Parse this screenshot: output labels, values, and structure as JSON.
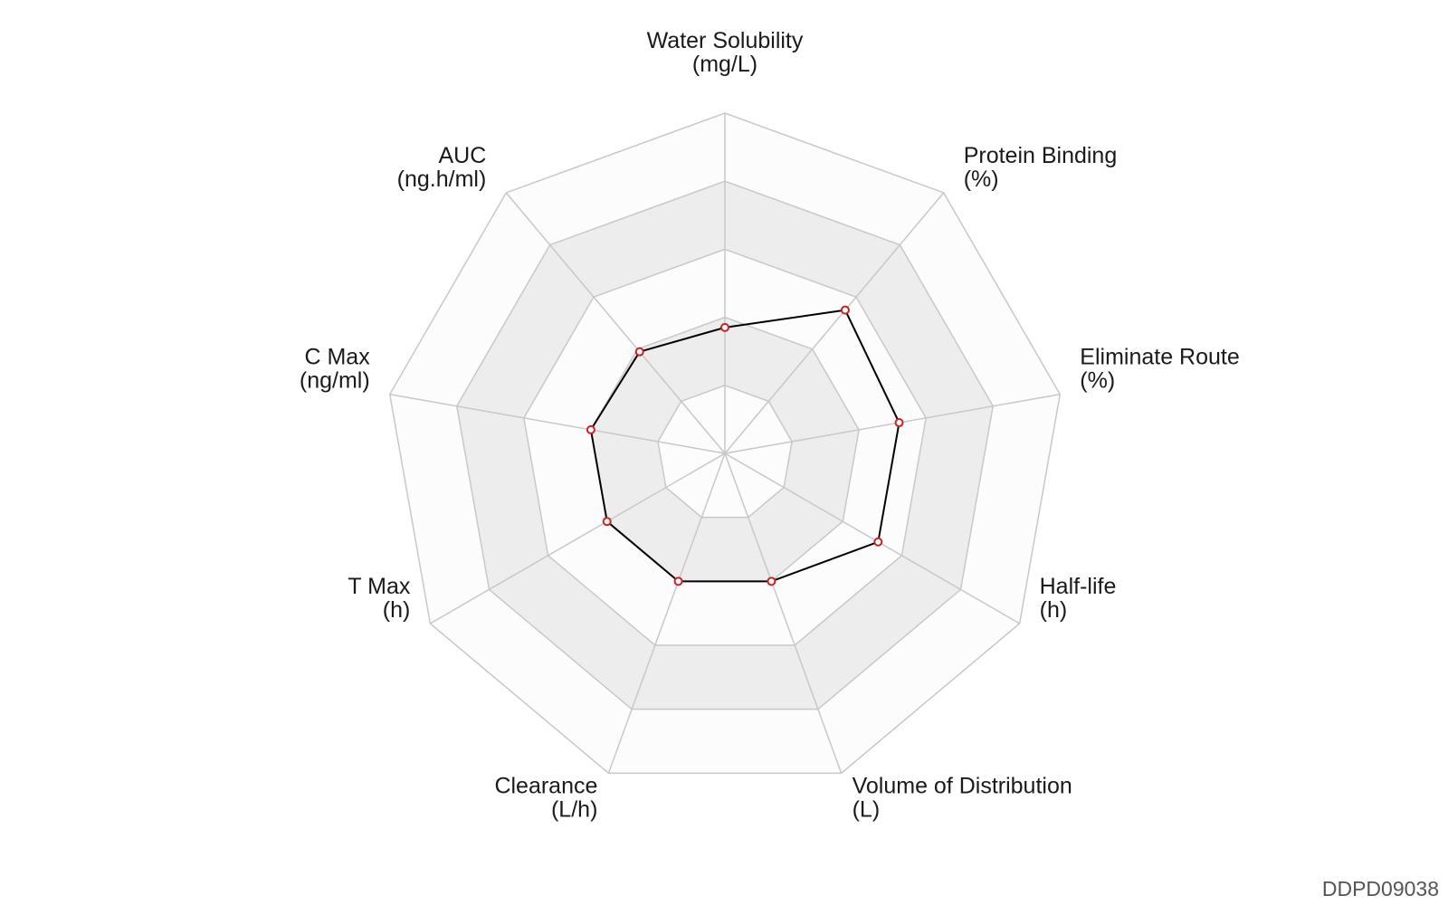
{
  "chart_data": {
    "type": "radar",
    "axes": [
      {
        "name": "Water Solubility",
        "unit": "(mg/L)"
      },
      {
        "name": "Protein Binding",
        "unit": "(%)"
      },
      {
        "name": "Eliminate Route",
        "unit": "(%)"
      },
      {
        "name": "Half-life",
        "unit": "(h)"
      },
      {
        "name": "Volume of Distribution",
        "unit": "(L)"
      },
      {
        "name": "Clearance",
        "unit": "(L/h)"
      },
      {
        "name": "T Max",
        "unit": "(h)"
      },
      {
        "name": "C Max",
        "unit": "(ng/ml)"
      },
      {
        "name": "AUC",
        "unit": "(ng.h/ml)"
      }
    ],
    "rings": 5,
    "range": [
      0,
      1
    ],
    "series": [
      {
        "values": [
          0.37,
          0.55,
          0.52,
          0.52,
          0.4,
          0.4,
          0.4,
          0.4,
          0.39
        ]
      }
    ],
    "colors": {
      "line": "#000000",
      "marker_stroke": "#cc2222",
      "marker_fill": "#ffffff",
      "band_light": "#fcfcfc",
      "band_dark": "#ededed",
      "grid": "#c8c8c8"
    }
  },
  "watermark": "DDPD09038"
}
